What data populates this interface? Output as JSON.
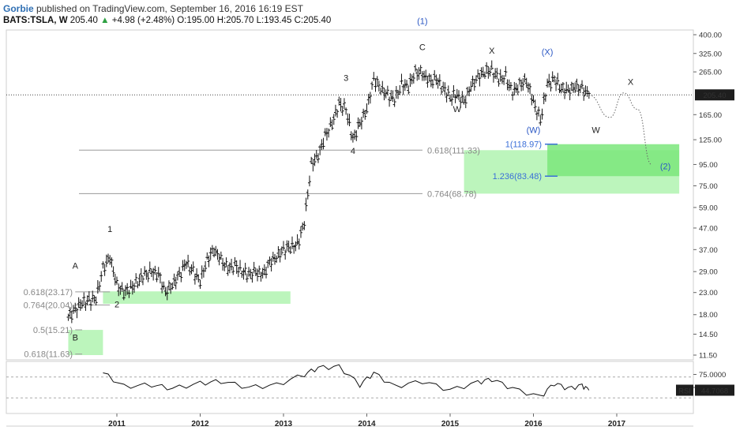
{
  "header": {
    "author": "Gorbie",
    "published_text": " published on TradingView.com, September 16, 2016 16:19 EST",
    "symbol": "BATS:TSLA, W",
    "price": "205.40",
    "change": "+4.98 (+2.48%)",
    "ohlc": "O:195.00 H:205.70 L:193.45 C:205.40"
  },
  "colors": {
    "zone_green": "#90ee90",
    "zone_green_dark": "#7be67b",
    "price_badge_bg": "#1e1e1e",
    "label_blue": "#2a57c4",
    "fib_blue": "#3a6fd8",
    "up_green": "#2ea043"
  },
  "chart_data": [
    {
      "type": "line",
      "subtype": "ohlc-bars-weekly",
      "title": "BATS:TSLA, W",
      "x_ticks": [
        "2011",
        "2012",
        "2013",
        "2014",
        "2015",
        "2016",
        "2017"
      ],
      "y_scale": "log",
      "y_ticks": [
        "400.00",
        "325.00",
        "265.00",
        "205.40",
        "165.00",
        "125.00",
        "95.00",
        "75.00",
        "59.00",
        "47.00",
        "37.00",
        "29.00",
        "23.00",
        "18.00",
        "14.50",
        "11.50"
      ],
      "last_price": "205.40",
      "series": [
        {
          "values_approx": [
            [
              "2010-06",
              17.5
            ],
            [
              "2010-07",
              19
            ],
            [
              "2010-08",
              20.5
            ],
            [
              "2010-09",
              21
            ],
            [
              "2010-10",
              21.5
            ],
            [
              "2010-11",
              30
            ],
            [
              "2010-12",
              34
            ],
            [
              "2011-01",
              25
            ],
            [
              "2011-02",
              23
            ],
            [
              "2011-03",
              24
            ],
            [
              "2011-04",
              26
            ],
            [
              "2011-05",
              28
            ],
            [
              "2011-06",
              29
            ],
            [
              "2011-07",
              28
            ],
            [
              "2011-08",
              23
            ],
            [
              "2011-09",
              25
            ],
            [
              "2011-10",
              28
            ],
            [
              "2011-11",
              32
            ],
            [
              "2011-12",
              29
            ],
            [
              "2012-01",
              26
            ],
            [
              "2012-02",
              33
            ],
            [
              "2012-03",
              37
            ],
            [
              "2012-04",
              33
            ],
            [
              "2012-05",
              30
            ],
            [
              "2012-06",
              31
            ],
            [
              "2012-07",
              29
            ],
            [
              "2012-08",
              28
            ],
            [
              "2012-09",
              29
            ],
            [
              "2012-10",
              28
            ],
            [
              "2012-11",
              32
            ],
            [
              "2012-12",
              34
            ],
            [
              "2013-01",
              37
            ],
            [
              "2013-02",
              38
            ],
            [
              "2013-03",
              39
            ],
            [
              "2013-04",
              50
            ],
            [
              "2013-05",
              95
            ],
            [
              "2013-06",
              105
            ],
            [
              "2013-07",
              130
            ],
            [
              "2013-08",
              150
            ],
            [
              "2013-09",
              185
            ],
            [
              "2013-10",
              175
            ],
            [
              "2013-11",
              125
            ],
            [
              "2013-12",
              150
            ],
            [
              "2014-01",
              175
            ],
            [
              "2014-02",
              245
            ],
            [
              "2014-03",
              220
            ],
            [
              "2014-04",
              205
            ],
            [
              "2014-05",
              195
            ],
            [
              "2014-06",
              230
            ],
            [
              "2014-07",
              225
            ],
            [
              "2014-08",
              265
            ],
            [
              "2014-09",
              260
            ],
            [
              "2014-10",
              240
            ],
            [
              "2014-11",
              245
            ],
            [
              "2014-12",
              220
            ],
            [
              "2015-01",
              200
            ],
            [
              "2015-02",
              205
            ],
            [
              "2015-03",
              190
            ],
            [
              "2015-04",
              226
            ],
            [
              "2015-05",
              250
            ],
            [
              "2015-06",
              265
            ],
            [
              "2015-07",
              270
            ],
            [
              "2015-08",
              245
            ],
            [
              "2015-09",
              250
            ],
            [
              "2015-10",
              210
            ],
            [
              "2015-11",
              230
            ],
            [
              "2015-12",
              240
            ],
            [
              "2016-01",
              190
            ],
            [
              "2016-02",
              155
            ],
            [
              "2016-03",
              230
            ],
            [
              "2016-04",
              245
            ],
            [
              "2016-05",
              220
            ],
            [
              "2016-06",
              215
            ],
            [
              "2016-07",
              225
            ],
            [
              "2016-08",
              220
            ],
            [
              "2016-09",
              205
            ]
          ]
        }
      ],
      "projection_path_approx": [
        [
          "2016-09",
          205
        ],
        [
          "2016-12",
          160
        ],
        [
          "2017-02",
          210
        ],
        [
          "2017-04",
          175
        ],
        [
          "2017-06",
          95
        ]
      ],
      "wave_labels": [
        {
          "text": "A",
          "date": "2010-07",
          "price": 30
        },
        {
          "text": "B",
          "date": "2010-07",
          "price": 13.5
        },
        {
          "text": "1",
          "date": "2010-12",
          "price": 45
        },
        {
          "text": "2",
          "date": "2011-01",
          "price": 19.5
        },
        {
          "text": "3",
          "date": "2013-10",
          "price": 240
        },
        {
          "text": "4",
          "date": "2013-11",
          "price": 107
        },
        {
          "text": "C",
          "date": "2014-09",
          "price": 338
        },
        {
          "text": "W",
          "date": "2015-02",
          "price": 170
        },
        {
          "text": "X",
          "date": "2015-07",
          "price": 325
        },
        {
          "text": "W",
          "date": "2016-10",
          "price": 135
        },
        {
          "text": "X",
          "date": "2017-03",
          "price": 230
        }
      ],
      "wave_labels_blue": [
        {
          "text": "(1)",
          "date": "2014-09",
          "price": 450
        },
        {
          "text": "(X)",
          "date": "2016-03",
          "price": 320
        },
        {
          "text": "(W)",
          "date": "2016-01",
          "price": 135
        },
        {
          "text": "(2)",
          "date": "2017-08",
          "price": 90
        }
      ],
      "fib_levels": [
        {
          "label": "0.618(111.33)",
          "value": 111.33,
          "from": "2010-11",
          "to": "2015-03"
        },
        {
          "label": "0.764(68.78)",
          "value": 68.78,
          "from": "2010-11",
          "to": "2015-03"
        },
        {
          "label": "0.618(23.17)",
          "value": 23.17,
          "from": "2010-07",
          "to": "2010-12"
        },
        {
          "label": "0.764(20.04)",
          "value": 20.04,
          "from": "2010-07",
          "to": "2010-12"
        },
        {
          "label": "0.5(15.21)",
          "value": 15.21,
          "from": "2010-07",
          "to": "2010-08"
        },
        {
          "label": "0.618(11.63)",
          "value": 11.63,
          "from": "2010-07",
          "to": "2010-08"
        }
      ],
      "fib_levels_blue": [
        {
          "label": "1(118.97)",
          "value": 118.97
        },
        {
          "label": "1.236(83.48)",
          "value": 83.48
        }
      ],
      "zones": [
        {
          "name": "zone-1",
          "price_low": 11.5,
          "price_high": 15.2,
          "from": "2010-06",
          "to": "2010-11"
        },
        {
          "name": "zone-2",
          "price_low": 20.3,
          "price_high": 23.3,
          "from": "2010-11",
          "to": "2013-02"
        },
        {
          "name": "zone-3",
          "price_low": 68.78,
          "price_high": 111.33,
          "from": "2015-03",
          "to": "2017-10"
        },
        {
          "name": "zone-4",
          "price_low": 83.48,
          "price_high": 118.97,
          "from": "2016-03",
          "to": "2017-10"
        }
      ]
    },
    {
      "type": "line",
      "title": "RSI",
      "y_ticks": [
        "75.0000",
        "50.0000"
      ],
      "last_value": "44.7068",
      "series": [
        {
          "name": "RSI",
          "values_approx": [
            [
              "2010-11",
              78
            ],
            [
              "2011-02",
              52
            ],
            [
              "2011-06",
              55
            ],
            [
              "2011-09",
              48
            ],
            [
              "2012-01",
              58
            ],
            [
              "2012-04",
              62
            ],
            [
              "2012-08",
              50
            ],
            [
              "2012-12",
              55
            ],
            [
              "2013-04",
              75
            ],
            [
              "2013-06",
              88
            ],
            [
              "2013-09",
              90
            ],
            [
              "2013-12",
              55
            ],
            [
              "2014-02",
              78
            ],
            [
              "2014-05",
              52
            ],
            [
              "2014-09",
              62
            ],
            [
              "2015-01",
              45
            ],
            [
              "2015-05",
              60
            ],
            [
              "2015-07",
              66
            ],
            [
              "2015-10",
              48
            ],
            [
              "2016-02",
              32
            ],
            [
              "2016-04",
              58
            ],
            [
              "2016-06",
              48
            ],
            [
              "2016-08",
              54
            ],
            [
              "2016-09",
              44.7
            ]
          ]
        }
      ],
      "levels": [
        70,
        30
      ]
    }
  ]
}
